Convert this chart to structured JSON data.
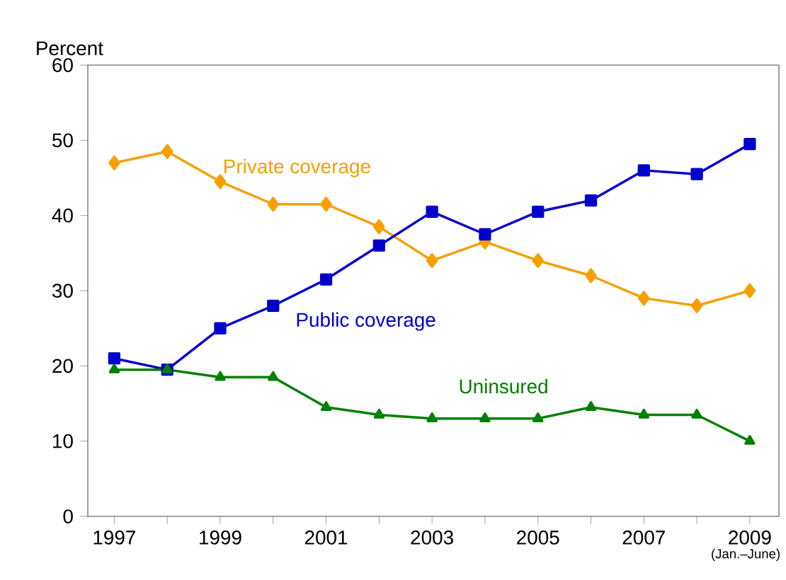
{
  "chart_data": {
    "type": "line",
    "ylabel": "Percent",
    "x": [
      1997,
      1998,
      1999,
      2000,
      2001,
      2002,
      2003,
      2004,
      2005,
      2006,
      2007,
      2008,
      2009
    ],
    "series": [
      {
        "name": "Private coverage",
        "color": "#f5a000",
        "marker": "diamond",
        "values": [
          47,
          48.5,
          44.5,
          41.5,
          41.5,
          38.5,
          34,
          36.5,
          34,
          32,
          29,
          28,
          30
        ]
      },
      {
        "name": "Public coverage",
        "color": "#0000cc",
        "marker": "square",
        "values": [
          21,
          19.5,
          25,
          28,
          31.5,
          36,
          40.5,
          37.5,
          40.5,
          42,
          46,
          45.5,
          49.5
        ]
      },
      {
        "name": "Uninsured",
        "color": "#008000",
        "marker": "triangle",
        "values": [
          19.5,
          19.5,
          18.5,
          18.5,
          14.5,
          13.5,
          13,
          13,
          13,
          14.5,
          13.5,
          13.5,
          10
        ]
      }
    ],
    "xlim": [
      1996.5,
      2009.55
    ],
    "xticks": [
      1997,
      {
        "value": 1998,
        "label": null
      },
      1999,
      {
        "value": 2000,
        "label": null
      },
      2001,
      {
        "value": 2002,
        "label": null
      },
      2003,
      {
        "value": 2004,
        "label": null
      },
      2005,
      {
        "value": 2006,
        "label": null
      },
      2007,
      {
        "value": 2008,
        "label": null
      },
      2009
    ],
    "ylim": [
      0,
      60
    ],
    "yticks": [
      0,
      10,
      20,
      30,
      40,
      50,
      60
    ],
    "grid": false,
    "line_style": "solid",
    "annotations": [
      "(Jan.–June)"
    ]
  }
}
